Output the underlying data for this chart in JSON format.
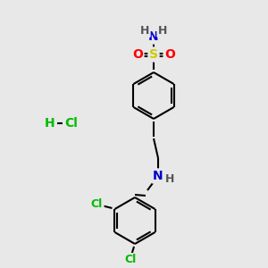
{
  "bg_color": "#e8e8e8",
  "bond_color": "#000000",
  "atom_colors": {
    "N": "#0000cc",
    "O": "#ff0000",
    "S": "#cccc00",
    "Cl": "#00bb00",
    "H": "#555555",
    "C": "#000000"
  },
  "figsize": [
    3.0,
    3.0
  ],
  "dpi": 100
}
